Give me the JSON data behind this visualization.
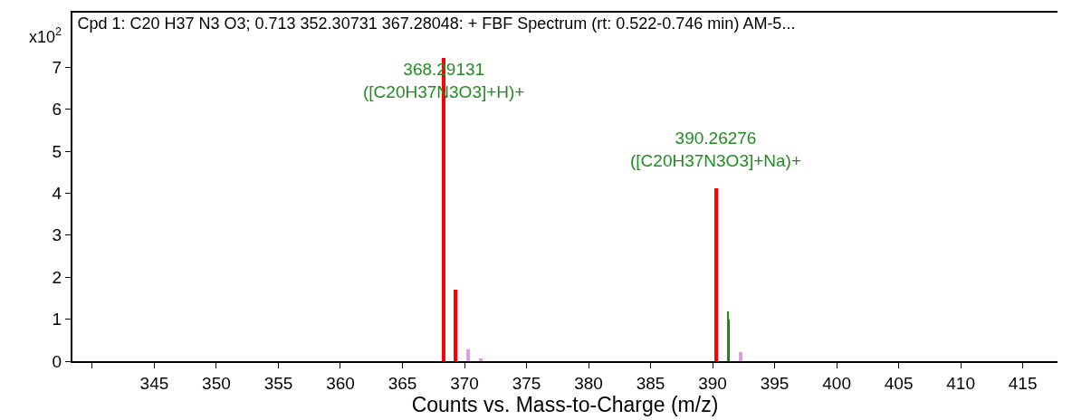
{
  "chart_data": {
    "type": "bar",
    "title": "Cpd 1: C20 H37 N3 O3; 0.713 352.30731 367.28048: + FBF Spectrum (rt: 0.522-0.746 min) AM-5...",
    "xlabel": "Counts vs. Mass-to-Charge (m/z)",
    "ylabel": "x10$^{2}$",
    "series": [
      {
        "color": "#ff0000",
        "x": [
          368.29131,
          369.294,
          390.26276,
          391.266
        ],
        "values": [
          7.23,
          1.71,
          4.12,
          1.0
        ]
      },
      {
        "color": "#dda0dd",
        "x": [
          370.297,
          371.3,
          392.27
        ],
        "values": [
          0.28,
          0.06,
          0.21
        ]
      },
      {
        "color": "#228b22",
        "x": [
          391.266
        ],
        "values": [
          1.19
        ]
      }
    ],
    "annotations": [
      {
        "text": "368.29131\n([C20H37N3O3]+H)+",
        "x": 368.29131,
        "y": 7.23
      },
      {
        "text": "390.26276\n([C20H37N3O3]+Na)+",
        "x": 390.26276,
        "y": 4.12
      }
    ],
    "xlim": [
      338.4,
      417.8
    ],
    "xticks": [
      {
        "value": 340,
        "label": null
      },
      345,
      350,
      355,
      360,
      365,
      370,
      375,
      380,
      385,
      390,
      395,
      400,
      405,
      410,
      415
    ],
    "ylim": [
      0,
      8.3
    ],
    "yticks": [
      0,
      1,
      2,
      3,
      4,
      5,
      6,
      7
    ]
  }
}
